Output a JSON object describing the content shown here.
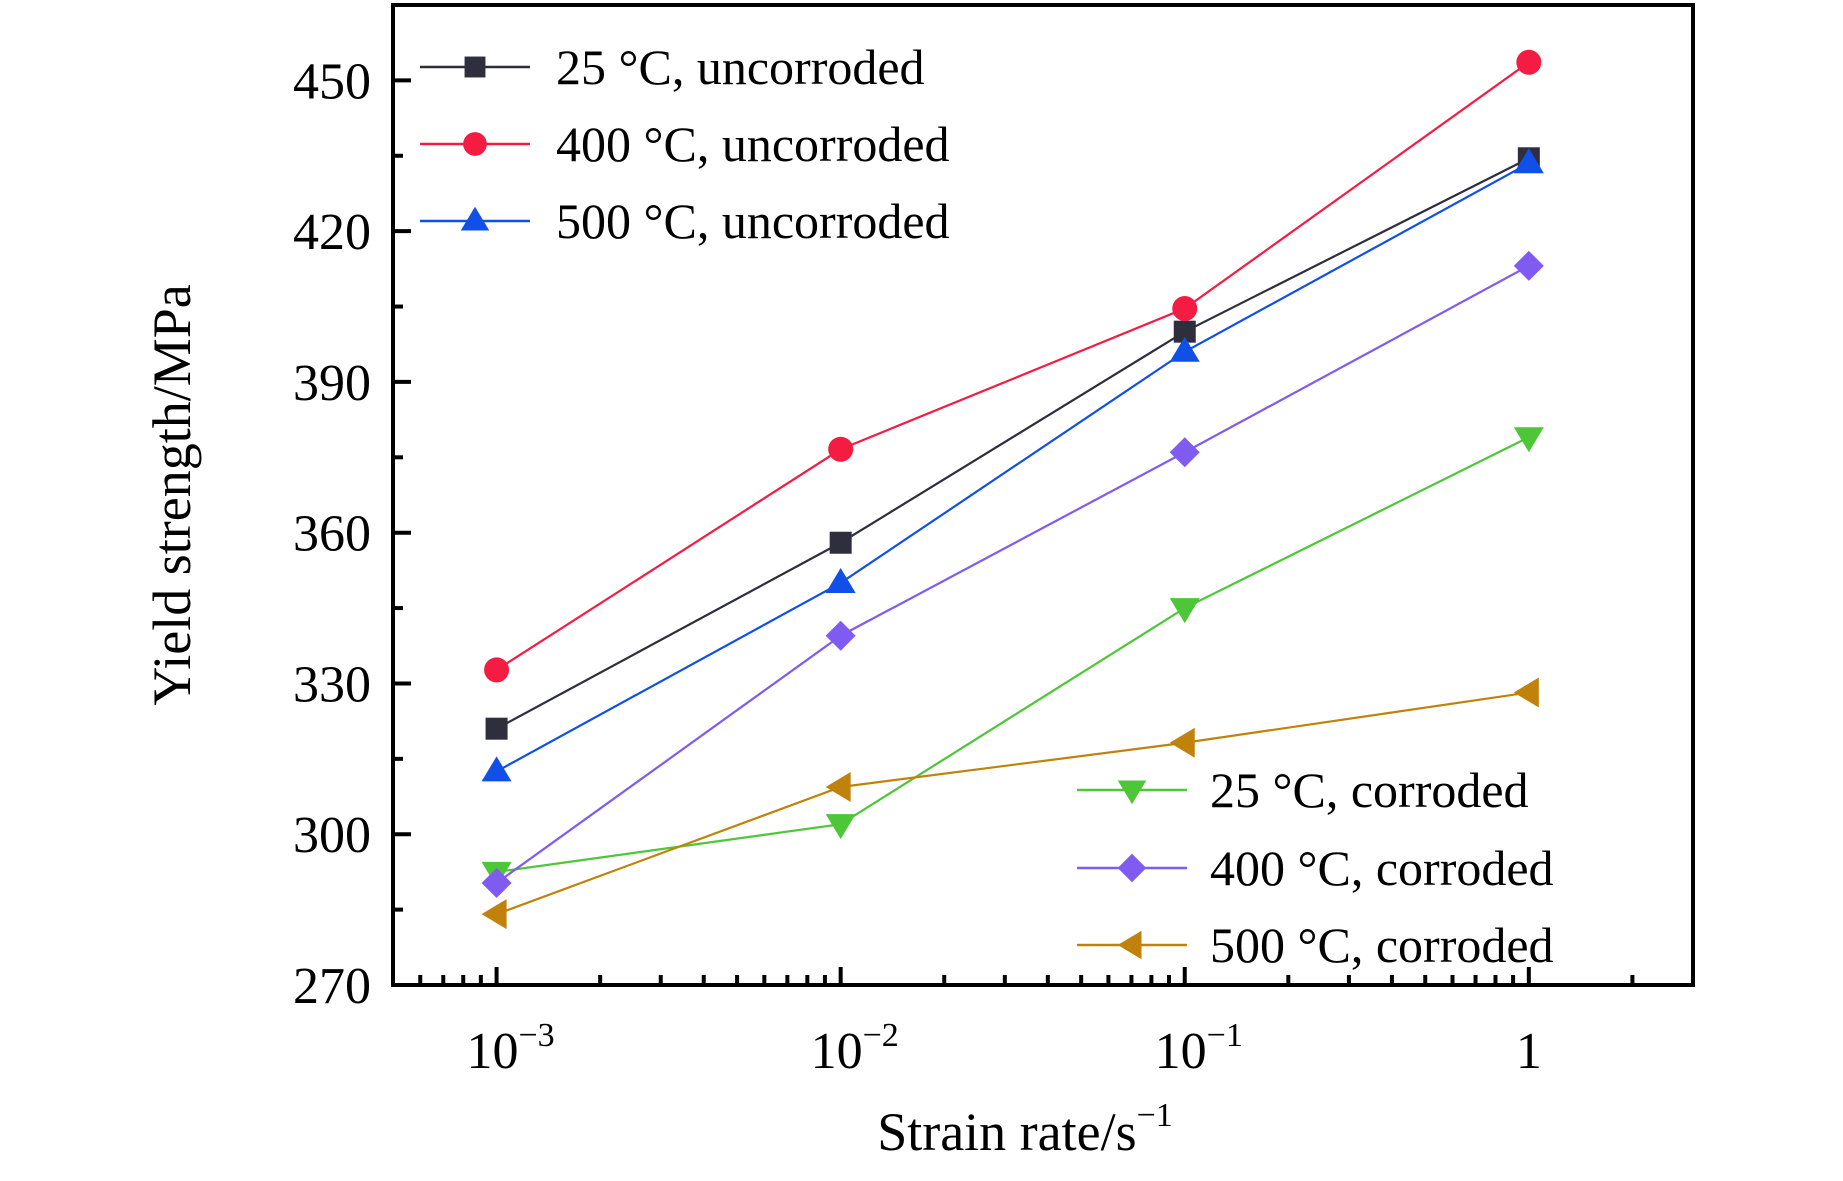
{
  "chart_data": {
    "type": "line",
    "title": "",
    "xlabel": "Strain rate/s",
    "xlabel_superscript": "−1",
    "ylabel": "Yield strength/MPa",
    "xscale": "log",
    "xlim": [
      0.0005,
      3
    ],
    "ylim": [
      270,
      465
    ],
    "x": [
      0.001,
      0.01,
      0.1,
      1
    ],
    "xtick_labels": [
      {
        "value": 0.001,
        "base": "10",
        "exp": "−3"
      },
      {
        "value": 0.01,
        "base": "10",
        "exp": "−2"
      },
      {
        "value": 0.1,
        "base": "10",
        "exp": "−1"
      },
      {
        "value": 1,
        "base": "1",
        "exp": ""
      }
    ],
    "yticks": [
      270,
      300,
      330,
      360,
      390,
      420,
      450
    ],
    "grid": false,
    "series": [
      {
        "name": "25 °C, uncorroded",
        "color": "#2e2e3c",
        "marker": "square",
        "values": [
          321,
          358,
          400,
          434.5
        ]
      },
      {
        "name": "400 °C, uncorroded",
        "color": "#f51c44",
        "marker": "circle",
        "values": [
          332.7,
          376.6,
          404.6,
          453.6
        ]
      },
      {
        "name": "500 °C, uncorroded",
        "color": "#1050e8",
        "marker": "triangle-up",
        "values": [
          312.5,
          350,
          396,
          433.5
        ]
      },
      {
        "name": "25 °C, corroded",
        "color": "#4dc638",
        "marker": "triangle-down",
        "values": [
          292.5,
          302,
          345,
          379
        ]
      },
      {
        "name": "400 °C, corroded",
        "color": "#7f5bf2",
        "marker": "diamond",
        "values": [
          290.3,
          339.5,
          376,
          413.1
        ]
      },
      {
        "name": "500 °C, corroded",
        "color": "#c0820a",
        "marker": "triangle-left",
        "values": [
          284.1,
          309.4,
          318.2,
          328.2
        ]
      }
    ],
    "legends": [
      {
        "placement": "top-left",
        "series_indices": [
          0,
          1,
          2
        ]
      },
      {
        "placement": "bottom-right",
        "series_indices": [
          3,
          4,
          5
        ]
      }
    ]
  }
}
